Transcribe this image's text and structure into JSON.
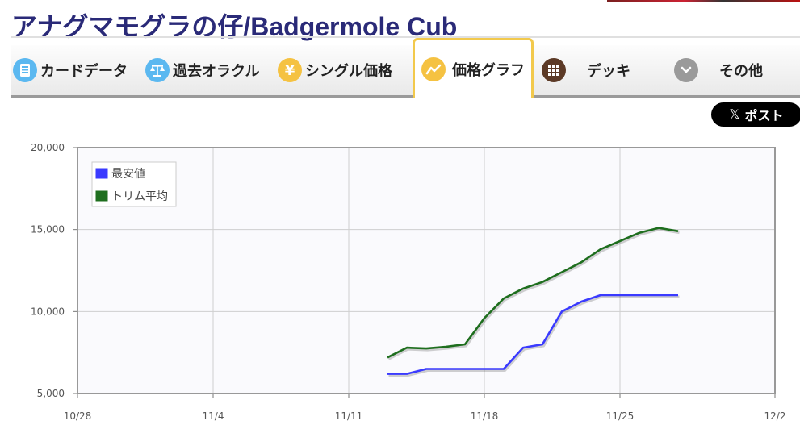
{
  "page": {
    "title": "アナグマモグラの仔/Badgermole Cub"
  },
  "nav": {
    "items": [
      {
        "label": "カードデータ",
        "icon": "card-data-icon",
        "color": "#5bb8f0",
        "active": false
      },
      {
        "label": "過去オラクル",
        "icon": "scales-icon",
        "color": "#5bb8f0",
        "active": false
      },
      {
        "label": "シングル価格",
        "icon": "yen-icon",
        "color": "#f5c242",
        "active": false
      },
      {
        "label": "価格グラフ",
        "icon": "line-graph-icon",
        "color": "#f5c242",
        "active": true
      },
      {
        "label": "デッキ",
        "icon": "grid-icon",
        "color": "#5c3a26",
        "active": false
      },
      {
        "label": "その他",
        "icon": "chevron-down-icon",
        "color": "#9a9a9a",
        "active": false
      }
    ]
  },
  "share": {
    "label": "ポスト",
    "icon": "x-logo-icon"
  },
  "chart_data": {
    "type": "line",
    "title": "",
    "xlabel": "",
    "ylabel": "",
    "x_ticks": [
      "10/28",
      "11/4",
      "11/11",
      "11/18",
      "11/25",
      "12/2"
    ],
    "y_ticks": [
      "5,000",
      "10,000",
      "15,000",
      "20,000"
    ],
    "ylim": [
      5000,
      20000
    ],
    "xlim": [
      "10/28",
      "12/2"
    ],
    "grid": true,
    "legend_position": "top-left",
    "series": [
      {
        "name": "最安値",
        "color": "#3a3aff",
        "points": [
          [
            "11/13",
            6200
          ],
          [
            "11/14",
            6200
          ],
          [
            "11/15",
            6500
          ],
          [
            "11/16",
            6500
          ],
          [
            "11/17",
            6500
          ],
          [
            "11/18",
            6500
          ],
          [
            "11/19",
            6500
          ],
          [
            "11/20",
            7800
          ],
          [
            "11/21",
            8000
          ],
          [
            "11/22",
            10000
          ],
          [
            "11/23",
            10600
          ],
          [
            "11/24",
            11000
          ],
          [
            "11/25",
            11000
          ],
          [
            "11/26",
            11000
          ],
          [
            "11/27",
            11000
          ],
          [
            "11/28",
            11000
          ]
        ]
      },
      {
        "name": "トリム平均",
        "color": "#1e6e1e",
        "points": [
          [
            "11/13",
            7200
          ],
          [
            "11/14",
            7800
          ],
          [
            "11/15",
            7750
          ],
          [
            "11/16",
            7850
          ],
          [
            "11/17",
            8000
          ],
          [
            "11/18",
            9600
          ],
          [
            "11/19",
            10800
          ],
          [
            "11/20",
            11400
          ],
          [
            "11/21",
            11800
          ],
          [
            "11/22",
            12400
          ],
          [
            "11/23",
            13000
          ],
          [
            "11/24",
            13800
          ],
          [
            "11/25",
            14300
          ],
          [
            "11/26",
            14800
          ],
          [
            "11/27",
            15100
          ],
          [
            "11/28",
            14900
          ]
        ]
      }
    ]
  }
}
